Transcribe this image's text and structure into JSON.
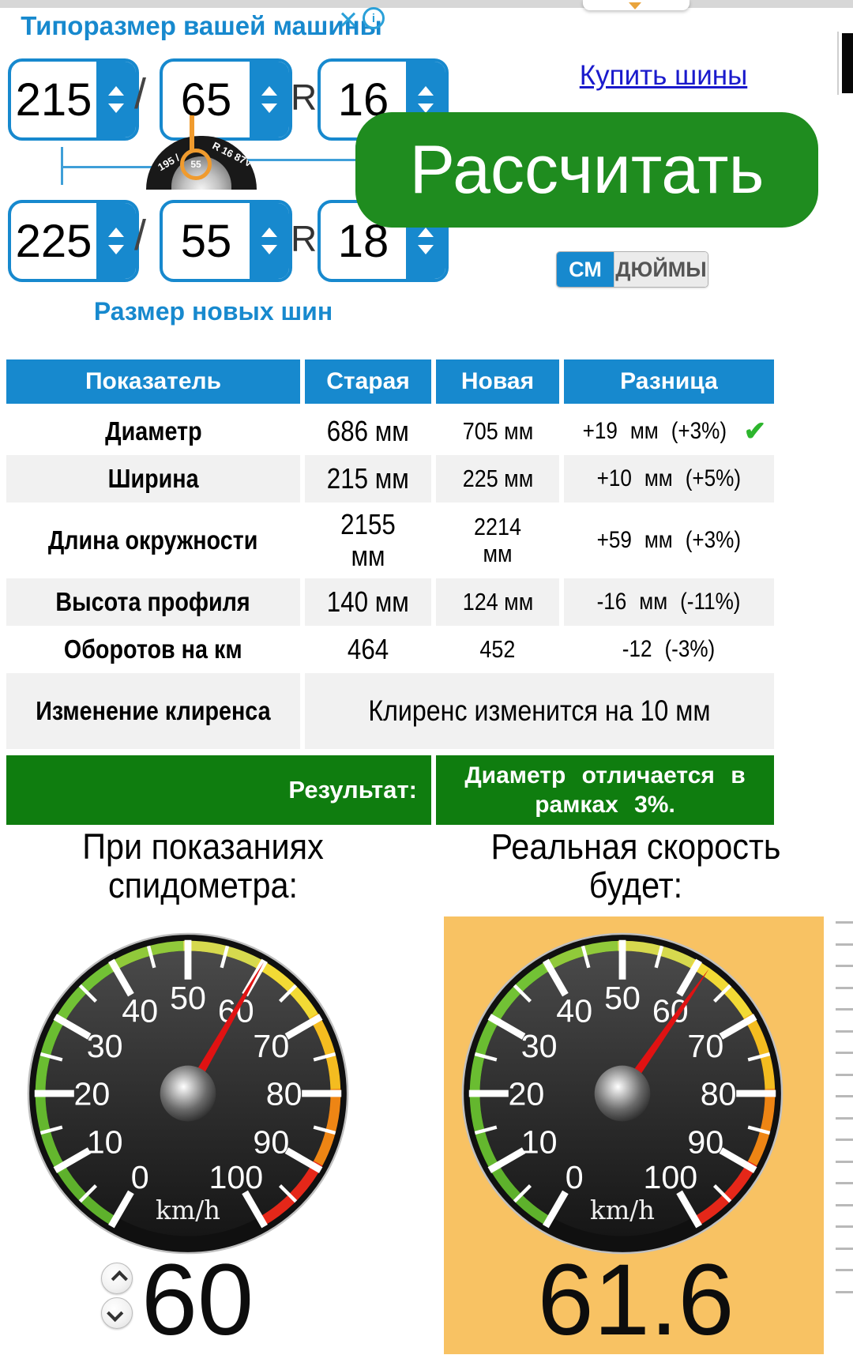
{
  "page_title": "Типоразмер вашей машины",
  "title_icons": {
    "close": "✕",
    "info": "i"
  },
  "size_labels": {
    "separator": "/",
    "radius_prefix": "R"
  },
  "old_size": {
    "width": "215",
    "profile": "65",
    "diameter": "16"
  },
  "new_size": {
    "width": "225",
    "profile": "55",
    "diameter": "18"
  },
  "new_size_label": "Размер новых шин",
  "tire": {
    "left_text": "195 /",
    "highlight": "55",
    "right_text": "R 16 87V"
  },
  "buy_link": "Купить шины",
  "calc_button": "Рассчитать",
  "unit_toggle": {
    "cm": "СМ",
    "inch": "ДЮЙМЫ",
    "selected": "СМ"
  },
  "table": {
    "headers": [
      "Показатель",
      "Старая",
      "Новая",
      "Разница"
    ],
    "rows": [
      {
        "name": "Диаметр",
        "old": "686 мм",
        "new": "705 мм",
        "diff": "+19 мм (+3%)",
        "check_icon": "✔"
      },
      {
        "name": "Ширина",
        "old": "215 мм",
        "new": "225 мм",
        "diff": "+10 мм (+5%)"
      },
      {
        "name": "Длина окружности",
        "old": "2155 мм",
        "new": "2214 мм",
        "diff": "+59 мм (+3%)"
      },
      {
        "name": "Высота профиля",
        "old": "140 мм",
        "new": "124 мм",
        "diff": "-16 мм (-11%)"
      },
      {
        "name": "Оборотов на км",
        "old": "464",
        "new": "452",
        "diff": "-12 (-3%)"
      },
      {
        "name": "Изменение клиренса",
        "merged": "Клиренс изменится на 10 мм"
      }
    ],
    "result_label": "Результат:",
    "result_text": "Диаметр отличается в рамках 3%."
  },
  "gauges": {
    "unit": "km/h",
    "tick_labels": [
      0,
      10,
      20,
      30,
      40,
      50,
      60,
      70,
      80,
      90,
      100
    ],
    "left": {
      "title_line1": "При показаниях",
      "title_line2": "спидометра:",
      "value": 60,
      "display": "60"
    },
    "right": {
      "title_line1": "Реальная скорость",
      "title_line2": "будет:",
      "value": 61.6,
      "display": "61.6"
    }
  },
  "colors": {
    "accent_blue": "#1789ce",
    "button_green": "#1f8c1f",
    "result_green": "#0f7d0f",
    "panel_orange": "#f8c263",
    "link_blue": "#1a1acc",
    "check_green": "#2db52d"
  }
}
